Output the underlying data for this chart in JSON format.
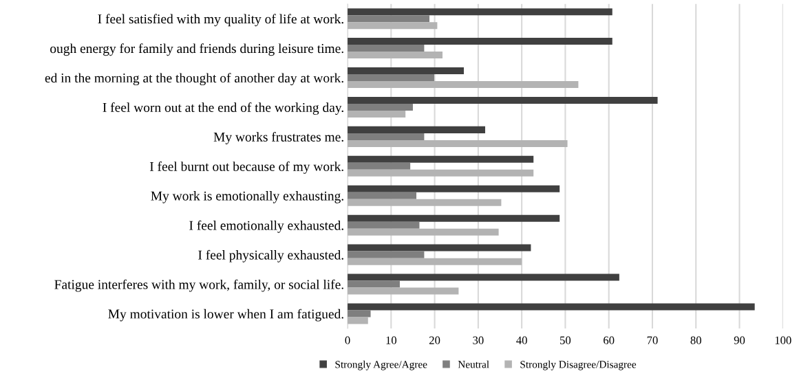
{
  "chart_data": {
    "type": "bar",
    "orientation": "horizontal",
    "categories": [
      "I feel satisfied with my quality of life at work.",
      "ough energy for family and friends during leisure time.",
      "ed in the morning at the thought of another day at work.",
      "I feel worn out at the end of the working day.",
      "My works frustrates me.",
      "I feel burnt out because of my work.",
      "My work is emotionally exhausting.",
      "I feel emotionally exhausted.",
      "I feel physically exhausted.",
      "Fatigue interferes with my work, family, or social life.",
      "My motivation is lower when I am fatigued."
    ],
    "series": [
      {
        "name": "Strongly Agree/Agree",
        "color": "#404040",
        "values": [
          60.8,
          60.8,
          26.7,
          71.2,
          31.6,
          42.7,
          48.7,
          48.7,
          42.1,
          62.4,
          93.5
        ]
      },
      {
        "name": "Neutral",
        "color": "#7f7f7f",
        "values": [
          18.8,
          17.6,
          19.9,
          15.0,
          17.6,
          14.4,
          15.8,
          16.5,
          17.6,
          12.0,
          5.3
        ]
      },
      {
        "name": "Strongly Disagree/Disagree",
        "color": "#b3b3b3",
        "values": [
          20.6,
          21.8,
          53.0,
          13.3,
          50.5,
          42.7,
          35.3,
          34.7,
          40.0,
          25.5,
          4.7
        ]
      }
    ],
    "xlim": [
      0,
      100
    ],
    "xticks": [
      0,
      10,
      20,
      30,
      40,
      50,
      60,
      70,
      80,
      90,
      100
    ],
    "grid": "x",
    "legend": "bottom"
  }
}
